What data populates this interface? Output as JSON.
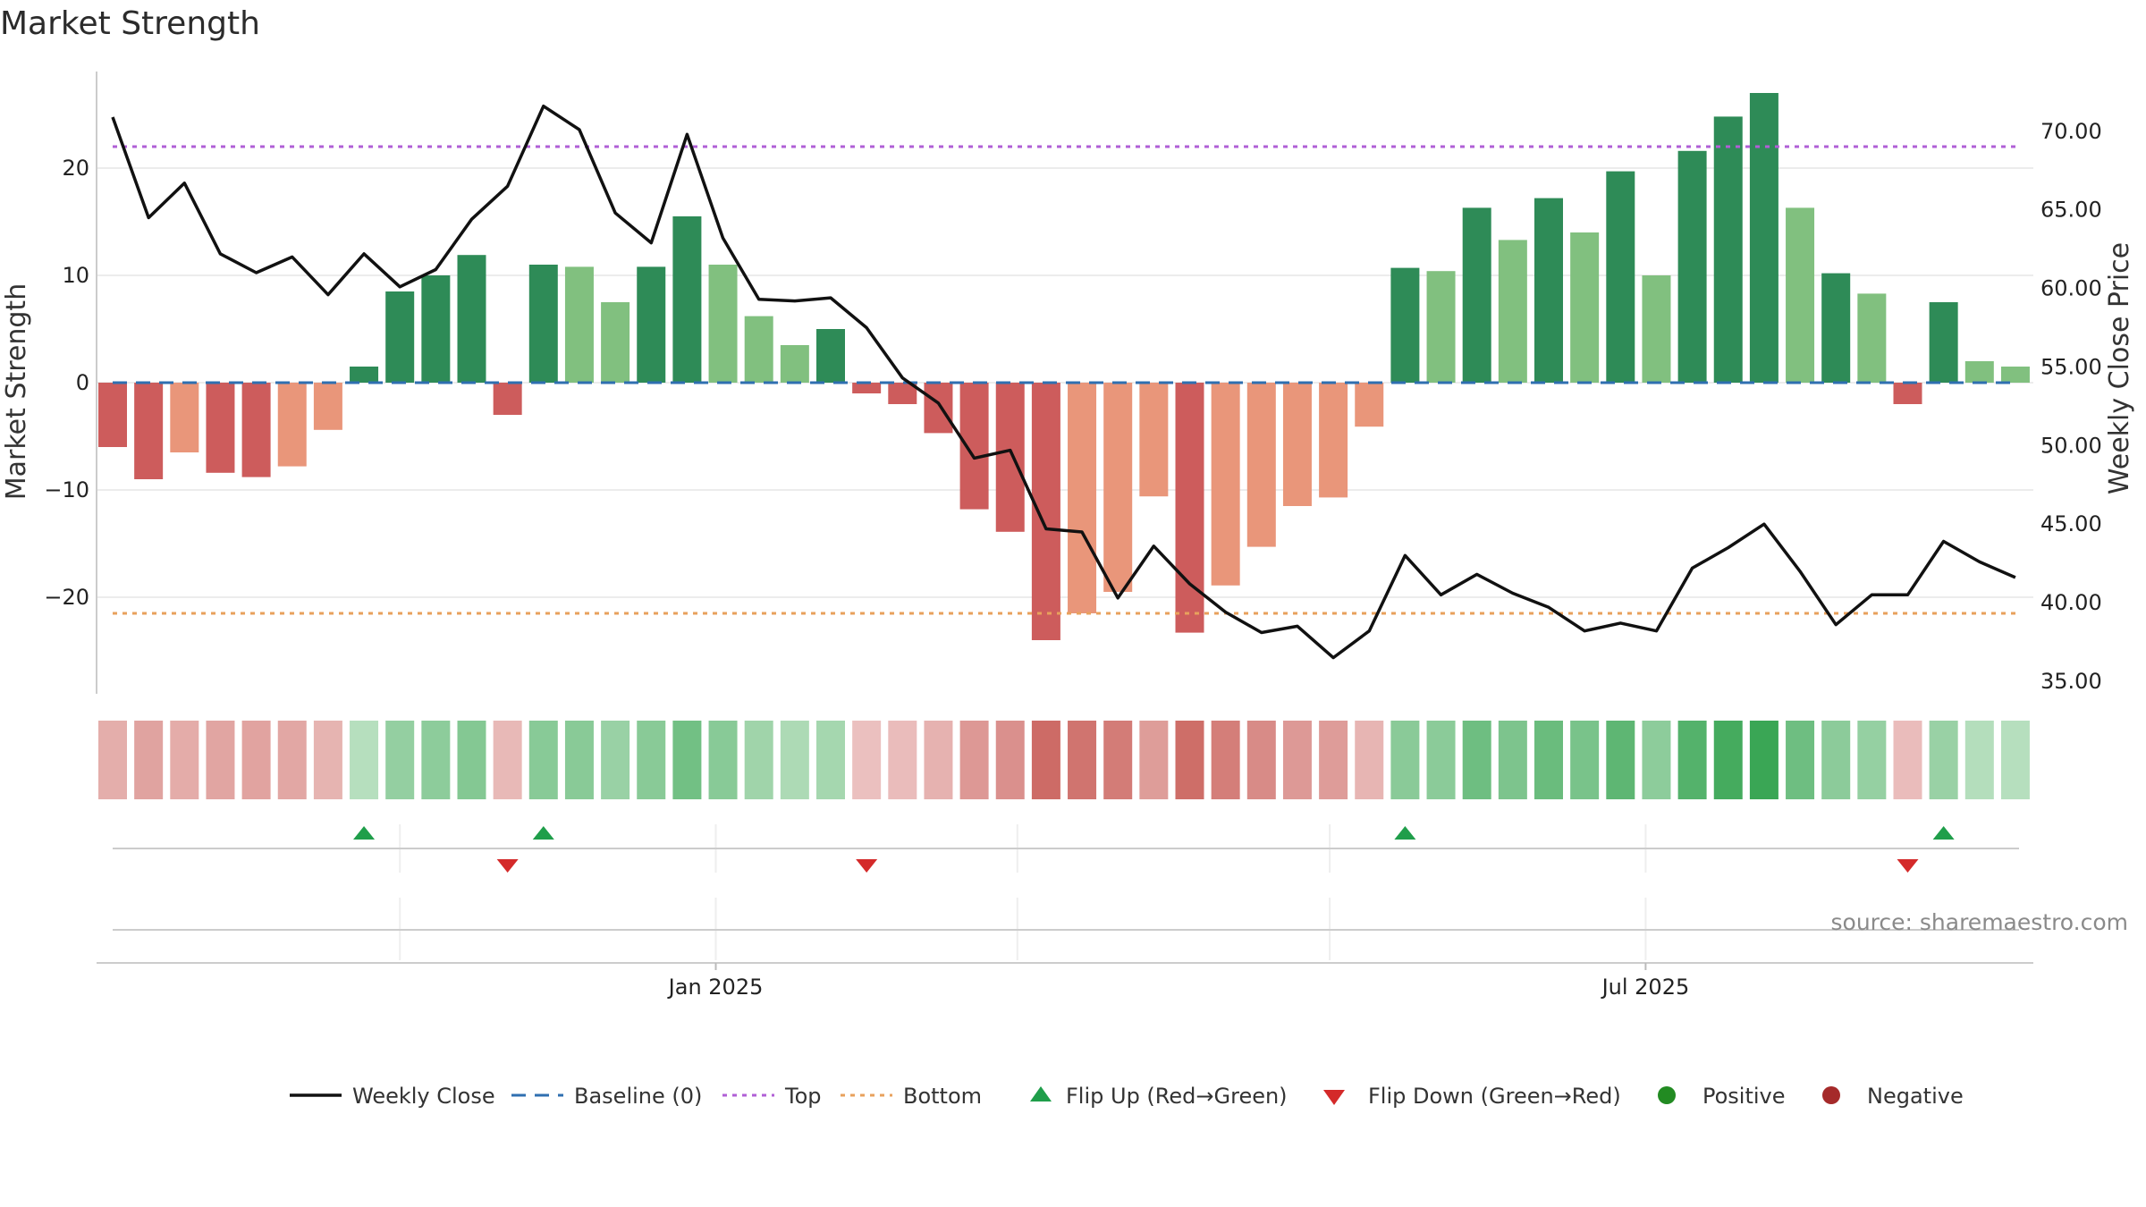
{
  "chart_data": {
    "type": "bar+line",
    "title": "Market Strength",
    "ylabel_left": "Market Strength",
    "ylabel_right": "Weekly Close Price",
    "source": "source: sharemaestro.com",
    "left_ylim": [
      -29,
      29
    ],
    "right_ylim": [
      34.2,
      73.8
    ],
    "left_ticks": [
      {
        "v": 20,
        "label": "20"
      },
      {
        "v": 10,
        "label": "10"
      },
      {
        "v": 0,
        "label": "0"
      },
      {
        "v": -10,
        "label": "−10"
      },
      {
        "v": -20,
        "label": "−20"
      }
    ],
    "right_ticks": [
      {
        "v": 70,
        "label": "70.00"
      },
      {
        "v": 65,
        "label": "65.00"
      },
      {
        "v": 60,
        "label": "60.00"
      },
      {
        "v": 55,
        "label": "55.00"
      },
      {
        "v": 50,
        "label": "50.00"
      },
      {
        "v": 45,
        "label": "45.00"
      },
      {
        "v": 40,
        "label": "40.00"
      },
      {
        "v": 35,
        "label": "35.00"
      }
    ],
    "x_ticks": [
      {
        "week": 16.8,
        "label": "Jan 2025"
      },
      {
        "week": 42.7,
        "label": "Jul 2025"
      }
    ],
    "vertical_grid_weeks": [
      8,
      16.8,
      25.2,
      33.9,
      42.7
    ],
    "baseline": 0,
    "top": 22,
    "bottom": -21.5,
    "strength": [
      -6,
      -9,
      -6.5,
      -8.4,
      -8.8,
      -7.8,
      -4.4,
      1.5,
      8.5,
      10,
      11.9,
      -3,
      11,
      10.8,
      7.5,
      10.8,
      15.5,
      11,
      6.2,
      3.5,
      5,
      -1,
      -2,
      -4.7,
      -11.8,
      -13.9,
      -24,
      -21.5,
      -19.5,
      -10.6,
      -23.3,
      -18.9,
      -15.3,
      -11.5,
      -10.7,
      -4.1,
      10.7,
      10.4,
      16.3,
      13.3,
      17.2,
      14,
      19.7,
      10,
      21.6,
      24.8,
      27,
      16.3,
      10.2,
      8.3,
      -2,
      7.5,
      2,
      1.5
    ],
    "tone": [
      "dark",
      "dark",
      "light",
      "dark",
      "dark",
      "light",
      "light",
      "dark",
      "dark",
      "dark",
      "dark",
      "dark",
      "dark",
      "light",
      "light",
      "dark",
      "dark",
      "light",
      "light",
      "light",
      "dark",
      "dark",
      "dark",
      "dark",
      "dark",
      "dark",
      "dark",
      "light",
      "light",
      "light",
      "dark",
      "light",
      "light",
      "light",
      "light",
      "light",
      "dark",
      "light",
      "dark",
      "light",
      "dark",
      "light",
      "dark",
      "light",
      "dark",
      "dark",
      "dark",
      "light",
      "dark",
      "light",
      "dark",
      "dark",
      "light",
      "light"
    ],
    "weekly_close": [
      70.9,
      64.5,
      66.7,
      62.2,
      61,
      62,
      59.6,
      62.2,
      60.1,
      61.2,
      64.4,
      66.5,
      71.6,
      70.1,
      64.8,
      62.9,
      69.8,
      63.2,
      59.3,
      59.2,
      59.4,
      57.5,
      54.3,
      52.7,
      49.2,
      49.7,
      44.7,
      44.5,
      40.3,
      43.6,
      41.2,
      39.4,
      38.1,
      38.5,
      36.5,
      38.2,
      43,
      40.5,
      41.8,
      40.6,
      39.7,
      38.2,
      38.7,
      38.2,
      42.2,
      43.5,
      45,
      42,
      38.6,
      40.5,
      40.5,
      43.9,
      42.6,
      41.6
    ],
    "flip_up_weeks": [
      7,
      12,
      36,
      51
    ],
    "flip_down_weeks": [
      11,
      21,
      50
    ],
    "colors": {
      "pos_dark": "#2e8b57",
      "pos_light": "#81c07f",
      "neg_dark": "#cd5c5c",
      "neg_light": "#e9967a",
      "line": "#111111",
      "baseline": "#2f6fb0",
      "top": "#b05fd6",
      "bottom": "#e8a15c",
      "flip_up": "#1f9e4a",
      "flip_down": "#d42a2a",
      "positive_dot": "#228b22",
      "negative_dot": "#a52a2a"
    },
    "legend": [
      {
        "key": "close",
        "label": "Weekly Close"
      },
      {
        "key": "baseline",
        "label": "Baseline (0)"
      },
      {
        "key": "top",
        "label": "Top"
      },
      {
        "key": "bottom",
        "label": "Bottom"
      },
      {
        "key": "flipup",
        "label": "Flip Up (Red→Green)"
      },
      {
        "key": "flipdown",
        "label": "Flip Down (Green→Red)"
      },
      {
        "key": "positive",
        "label": "Positive"
      },
      {
        "key": "negative",
        "label": "Negative"
      }
    ]
  }
}
